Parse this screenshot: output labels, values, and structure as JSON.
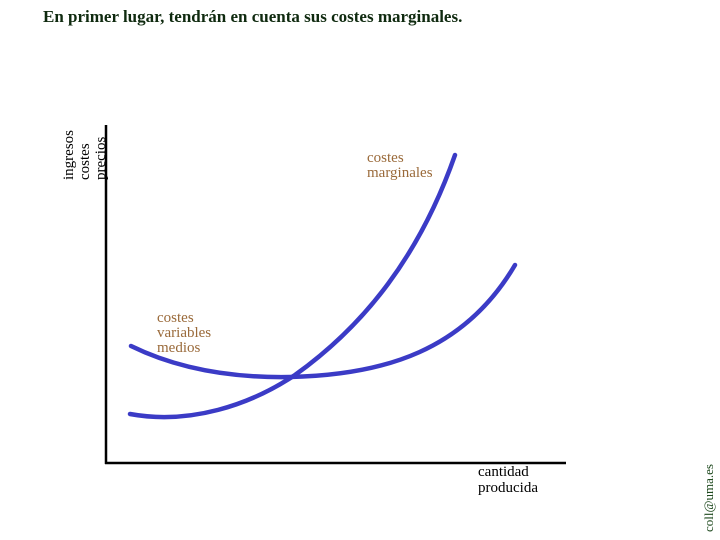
{
  "title": "En primer lugar, tendrán en cuenta sus costes marginales.",
  "y_axis": {
    "lines": [
      "ingresos",
      "costes",
      "precios"
    ]
  },
  "curves": {
    "marginal": {
      "label": [
        "costes",
        "marginales"
      ]
    },
    "average_variable": {
      "label": [
        "costes",
        "variables",
        "medios"
      ]
    }
  },
  "x_axis": {
    "label": [
      "cantidad",
      "producida"
    ]
  },
  "credit": "coll@uma.es"
}
